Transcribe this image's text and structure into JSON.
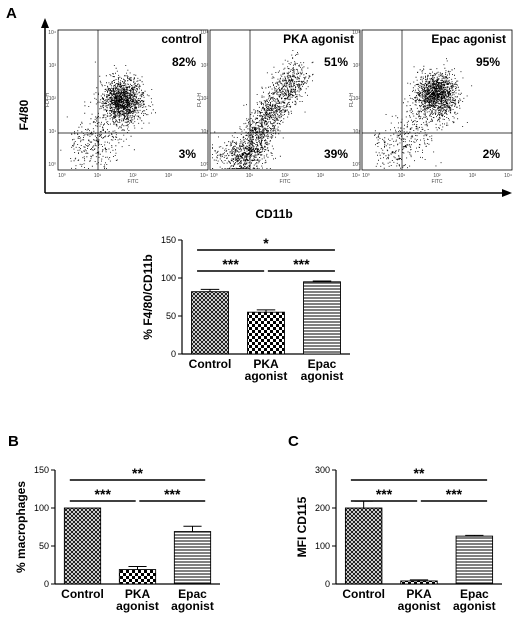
{
  "panel_letters": [
    "A",
    "B",
    "C"
  ],
  "flow": {
    "y_axis_label": "F4/80",
    "x_axis_label": "CD11b",
    "axis_tick_labels": [
      "10⁰",
      "10¹",
      "10²",
      "10³",
      "10⁴"
    ],
    "plot_y_label": "FL4-H",
    "plot_x_label": "FITC",
    "plots": [
      {
        "title": "control",
        "upper_right_pct": "82%",
        "lower_right_pct": "3%"
      },
      {
        "title": "PKA agonist",
        "upper_right_pct": "51%",
        "lower_right_pct": "39%"
      },
      {
        "title": "Epac agonist",
        "upper_right_pct": "95%",
        "lower_right_pct": "2%"
      }
    ]
  },
  "chart_data": [
    {
      "panel": "A",
      "type": "bar",
      "categories": [
        "Control",
        "PKA agonist",
        "Epac agonist"
      ],
      "category_lines": [
        [
          "Control"
        ],
        [
          "PKA",
          "agonist"
        ],
        [
          "Epac",
          "agonist"
        ]
      ],
      "values": [
        82,
        55,
        95
      ],
      "errors": [
        3,
        3,
        1
      ],
      "patterns": [
        "crosshatch",
        "checker",
        "hlines"
      ],
      "ylabel": "% F4/80/CD11b",
      "ylim": [
        0,
        150
      ],
      "yticks": [
        0,
        50,
        100,
        150
      ],
      "significance": [
        {
          "from": 0,
          "to": 1,
          "label": "***"
        },
        {
          "from": 1,
          "to": 2,
          "label": "***"
        },
        {
          "from": 0,
          "to": 2,
          "label": "*"
        }
      ]
    },
    {
      "panel": "B",
      "type": "bar",
      "categories": [
        "Control",
        "PKA agonist",
        "Epac agonist"
      ],
      "category_lines": [
        [
          "Control"
        ],
        [
          "PKA",
          "agonist"
        ],
        [
          "Epac",
          "agonist"
        ]
      ],
      "values": [
        100,
        19,
        69
      ],
      "errors": [
        0,
        4,
        7
      ],
      "patterns": [
        "crosshatch",
        "checker",
        "hlines"
      ],
      "ylabel": "% macrophages",
      "ylim": [
        0,
        150
      ],
      "yticks": [
        0,
        50,
        100,
        150
      ],
      "significance": [
        {
          "from": 0,
          "to": 1,
          "label": "***"
        },
        {
          "from": 1,
          "to": 2,
          "label": "***"
        },
        {
          "from": 0,
          "to": 2,
          "label": "**"
        }
      ]
    },
    {
      "panel": "C",
      "type": "bar",
      "categories": [
        "Control",
        "PKA agonist",
        "Epac agonist"
      ],
      "category_lines": [
        [
          "Control"
        ],
        [
          "PKA",
          "agonist"
        ],
        [
          "Epac",
          "agonist"
        ]
      ],
      "values": [
        200,
        8,
        126
      ],
      "errors": [
        18,
        3,
        2
      ],
      "patterns": [
        "crosshatch",
        "checker",
        "hlines"
      ],
      "ylabel": "MFI CD115",
      "ylim": [
        0,
        300
      ],
      "yticks": [
        0,
        100,
        200,
        300
      ],
      "significance": [
        {
          "from": 0,
          "to": 1,
          "label": "***"
        },
        {
          "from": 1,
          "to": 2,
          "label": "***"
        },
        {
          "from": 0,
          "to": 2,
          "label": "**"
        }
      ]
    }
  ]
}
